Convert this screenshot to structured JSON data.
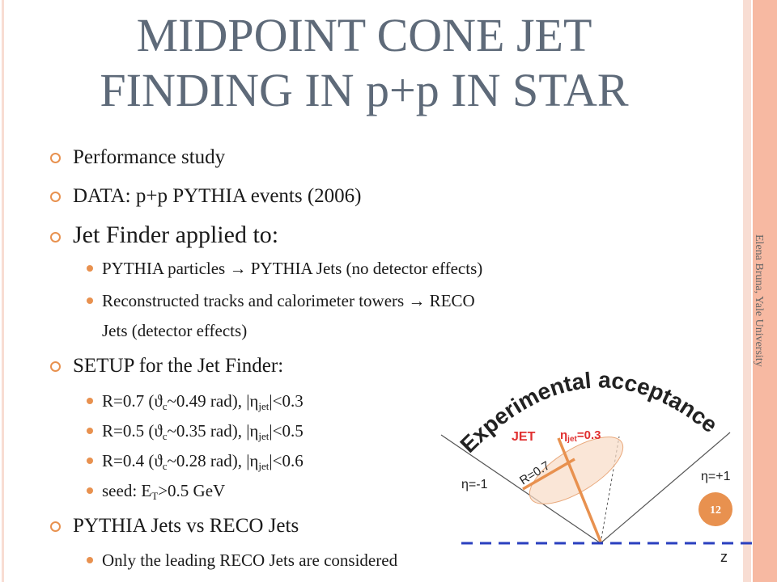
{
  "title": [
    "MIDPOINT CONE JET",
    "FINDING IN p+p IN STAR"
  ],
  "sidebar": "Elena Bruna, Yale University",
  "bullets": [
    {
      "text": [
        "Performance study"
      ]
    },
    {
      "text": [
        "DATA: p+p PYTHIA events (2006)"
      ]
    },
    {
      "text": [
        "Jet Finder applied to:"
      ],
      "items": [
        {
          "text": [
            "PYTHIA particles → PYTHIA Jets (no detector effects)"
          ]
        },
        {
          "text": [
            "Reconstructed tracks and calorimeter towers → RECO",
            "Jets (detector effects)"
          ]
        }
      ]
    },
    {
      "text": [
        "SETUP for the Jet Finder:"
      ],
      "items": [
        {
          "text": [
            "R=0.7 (ϑ",
            "c",
            "~0.49 rad), |η",
            "jet",
            "|<0.3"
          ]
        },
        {
          "text": [
            "R=0.5 (ϑ",
            "c",
            "~0.35 rad), |η",
            "jet",
            "|<0.5"
          ]
        },
        {
          "text": [
            "R=0.4 (ϑ",
            "c",
            "~0.28 rad), |η",
            "jet",
            "|<0.6"
          ]
        },
        {
          "text": [
            "seed: E",
            "T",
            ">0.5 GeV"
          ]
        }
      ]
    },
    {
      "text": [
        "PYTHIA Jets vs RECO Jets"
      ],
      "items": [
        {
          "text": [
            "Only the leading RECO Jets are considered"
          ]
        }
      ]
    }
  ],
  "diagram": {
    "arc_label": "Experimental acceptance",
    "jet": "JET",
    "eta_jet": [
      "η",
      "jet",
      "=0.3"
    ],
    "radius": "R=0.7",
    "eta_left": "η=-1",
    "eta_right": "η=+1",
    "axis": "z"
  },
  "page_number": "12"
}
